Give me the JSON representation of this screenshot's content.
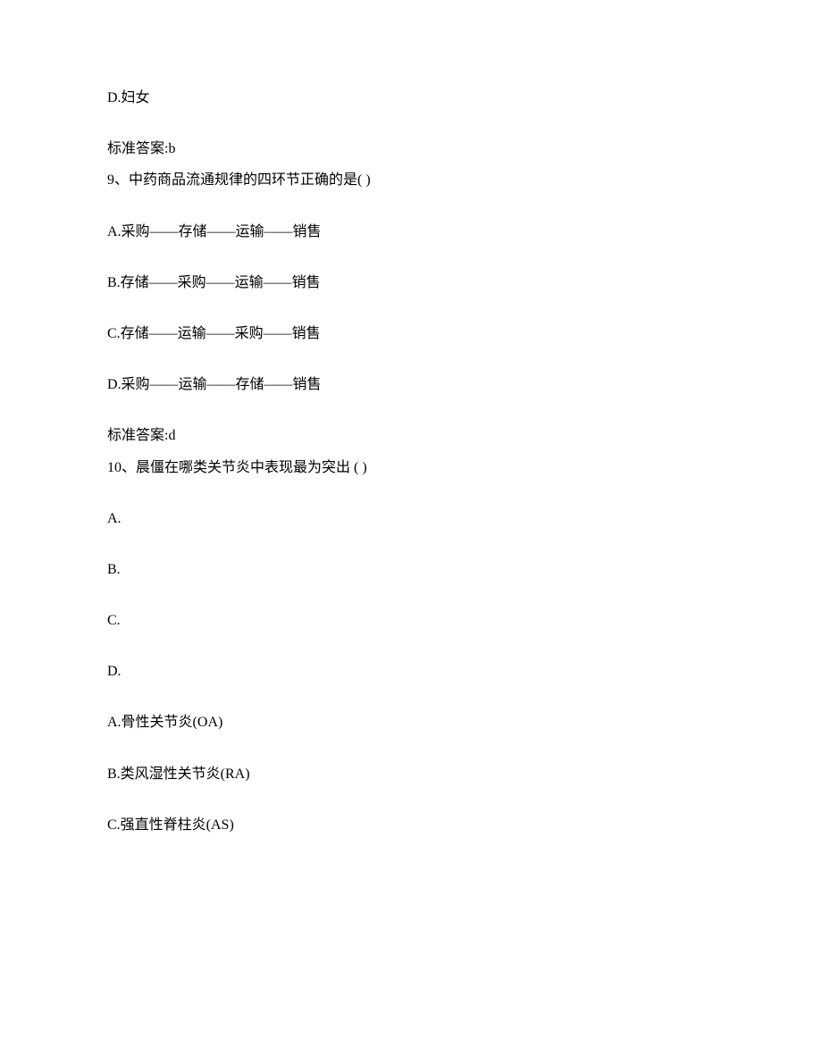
{
  "lines": [
    {
      "text": "D.妇女",
      "cls": "line"
    },
    {
      "text": "标准答案:b",
      "cls": "answer-line",
      "group_start": true
    },
    {
      "text": "9、中药商品流通规律的四环节正确的是( )",
      "cls": "q-line",
      "group_end": true
    },
    {
      "text": "A.采购——存储——运输——销售",
      "cls": "line"
    },
    {
      "text": "B.存储——采购——运输——销售",
      "cls": "line"
    },
    {
      "text": "C.存储——运输——采购——销售",
      "cls": "line"
    },
    {
      "text": "D.采购——运输——存储——销售",
      "cls": "line"
    },
    {
      "text": "标准答案:d",
      "cls": "answer-line",
      "group_start": true
    },
    {
      "text": "10、晨僵在哪类关节炎中表现最为突出 ( )",
      "cls": "q-line",
      "group_end": true
    },
    {
      "text": "A.",
      "cls": "line"
    },
    {
      "text": "B.",
      "cls": "line"
    },
    {
      "text": "C.",
      "cls": "line"
    },
    {
      "text": "D.",
      "cls": "line"
    },
    {
      "text": "A.骨性关节炎(OA)",
      "cls": "line"
    },
    {
      "text": "B.类风湿性关节炎(RA)",
      "cls": "line"
    },
    {
      "text": "C.强直性脊柱炎(AS)",
      "cls": "line"
    }
  ]
}
